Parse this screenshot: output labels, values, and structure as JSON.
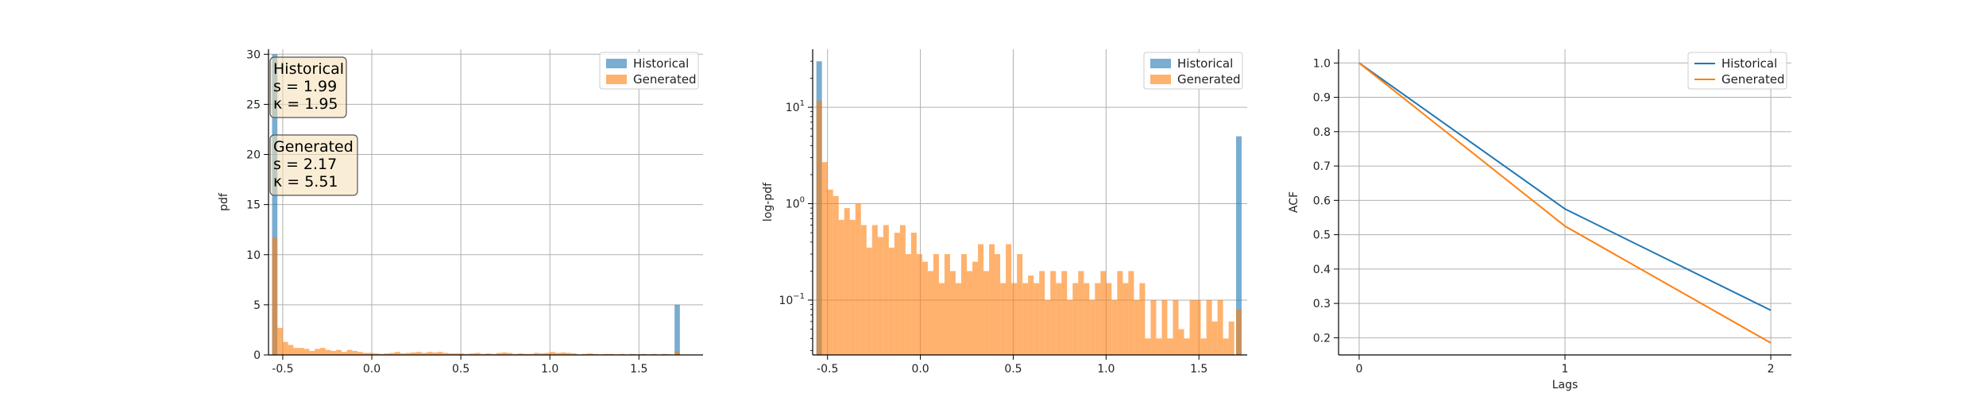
{
  "colors": {
    "historical": "#1f77b4",
    "generated": "#ff7f0e"
  },
  "chart_data": [
    {
      "type": "bar",
      "title": "",
      "xlabel": "",
      "ylabel": "pdf",
      "xlim": [
        -0.58,
        1.86
      ],
      "ylim": [
        0,
        30.5
      ],
      "x_ticks": [
        "-0.5",
        "0.0",
        "0.5",
        "1.0",
        "1.5"
      ],
      "x_tick_values": [
        -0.5,
        0.0,
        0.5,
        1.0,
        1.5
      ],
      "y_ticks": [
        "0",
        "5",
        "10",
        "15",
        "20",
        "25",
        "30"
      ],
      "y_tick_values": [
        0,
        5,
        10,
        15,
        20,
        25,
        30
      ],
      "grid": true,
      "legend": "top-right",
      "series": [
        {
          "name": "Historical",
          "color": "historical",
          "bins": [
            [
              -0.56,
              -0.53,
              30
            ],
            [
              1.7,
              1.73,
              5
            ]
          ]
        },
        {
          "name": "Generated",
          "color": "generated",
          "bins": [
            [
              -0.56,
              -0.53,
              11.7
            ],
            [
              -0.53,
              -0.5,
              2.7
            ],
            [
              -0.5,
              -0.47,
              1.3
            ],
            [
              -0.47,
              -0.44,
              1.0
            ],
            [
              -0.44,
              -0.41,
              0.7
            ],
            [
              -0.41,
              -0.38,
              0.7
            ],
            [
              -0.38,
              -0.35,
              0.6
            ],
            [
              -0.35,
              -0.32,
              0.4
            ],
            [
              -0.32,
              -0.29,
              0.6
            ],
            [
              -0.29,
              -0.26,
              0.7
            ],
            [
              -0.26,
              -0.23,
              0.5
            ],
            [
              -0.23,
              -0.2,
              0.4
            ],
            [
              -0.2,
              -0.17,
              0.5
            ],
            [
              -0.17,
              -0.14,
              0.3
            ],
            [
              -0.14,
              -0.11,
              0.5
            ],
            [
              -0.11,
              -0.08,
              0.4
            ],
            [
              -0.08,
              -0.05,
              0.3
            ],
            [
              -0.05,
              -0.02,
              0.2
            ],
            [
              -0.02,
              0.01,
              0.2
            ],
            [
              0.01,
              0.04,
              0.15
            ],
            [
              0.04,
              0.07,
              0.1
            ],
            [
              0.07,
              0.1,
              0.15
            ],
            [
              0.1,
              0.13,
              0.2
            ],
            [
              0.13,
              0.16,
              0.3
            ],
            [
              0.16,
              0.19,
              0.15
            ],
            [
              0.19,
              0.22,
              0.2
            ],
            [
              0.22,
              0.25,
              0.25
            ],
            [
              0.25,
              0.28,
              0.3
            ],
            [
              0.28,
              0.31,
              0.2
            ],
            [
              0.31,
              0.34,
              0.3
            ],
            [
              0.34,
              0.37,
              0.25
            ],
            [
              0.37,
              0.4,
              0.3
            ],
            [
              0.4,
              0.43,
              0.2
            ],
            [
              0.43,
              0.46,
              0.15
            ],
            [
              0.46,
              0.49,
              0.15
            ],
            [
              0.49,
              0.52,
              0.15
            ],
            [
              0.52,
              0.55,
              0.1
            ],
            [
              0.55,
              0.58,
              0.15
            ],
            [
              0.58,
              0.61,
              0.2
            ],
            [
              0.61,
              0.64,
              0.1
            ],
            [
              0.64,
              0.67,
              0.15
            ],
            [
              0.67,
              0.7,
              0.1
            ],
            [
              0.7,
              0.73,
              0.2
            ],
            [
              0.73,
              0.76,
              0.25
            ],
            [
              0.76,
              0.79,
              0.2
            ],
            [
              0.79,
              0.82,
              0.1
            ],
            [
              0.82,
              0.85,
              0.15
            ],
            [
              0.85,
              0.88,
              0.1
            ],
            [
              0.88,
              0.91,
              0.1
            ],
            [
              0.91,
              0.94,
              0.2
            ],
            [
              0.94,
              0.97,
              0.15
            ],
            [
              0.97,
              1.0,
              0.2
            ],
            [
              1.0,
              1.03,
              0.3
            ],
            [
              1.03,
              1.06,
              0.2
            ],
            [
              1.06,
              1.09,
              0.25
            ],
            [
              1.09,
              1.12,
              0.2
            ],
            [
              1.12,
              1.15,
              0.15
            ],
            [
              1.15,
              1.18,
              0.05
            ],
            [
              1.18,
              1.21,
              0.1
            ],
            [
              1.21,
              1.24,
              0.15
            ],
            [
              1.24,
              1.27,
              0.1
            ],
            [
              1.27,
              1.3,
              0.05
            ],
            [
              1.3,
              1.33,
              0.1
            ],
            [
              1.33,
              1.36,
              0.1
            ],
            [
              1.36,
              1.39,
              0.05
            ],
            [
              1.39,
              1.42,
              0.1
            ],
            [
              1.42,
              1.45,
              0.05
            ],
            [
              1.45,
              1.48,
              0.1
            ],
            [
              1.48,
              1.51,
              0.05
            ],
            [
              1.51,
              1.54,
              0.1
            ],
            [
              1.54,
              1.57,
              0.05
            ],
            [
              1.57,
              1.6,
              0.1
            ],
            [
              1.6,
              1.63,
              0.05
            ],
            [
              1.63,
              1.66,
              0.1
            ],
            [
              1.66,
              1.69,
              0.05
            ],
            [
              1.7,
              1.73,
              0.35
            ]
          ]
        }
      ],
      "annotations": [
        {
          "lines": [
            "Historical",
            "s = 1.99",
            "κ = 1.95"
          ]
        },
        {
          "lines": [
            "Generated",
            "s = 2.17",
            "κ = 5.51"
          ]
        }
      ]
    },
    {
      "type": "bar",
      "title": "",
      "xlabel": "",
      "ylabel": "log-pdf",
      "yscale": "log",
      "xlim": [
        -0.58,
        1.76
      ],
      "ylim": [
        0.027,
        40
      ],
      "x_ticks": [
        "-0.5",
        "0.0",
        "0.5",
        "1.0",
        "1.5"
      ],
      "x_tick_values": [
        -0.5,
        0.0,
        0.5,
        1.0,
        1.5
      ],
      "y_tick_values": [
        0.1,
        1,
        10
      ],
      "y_tick_labels": [
        [
          "10",
          "−1"
        ],
        [
          "10",
          "0"
        ],
        [
          "10",
          "1"
        ]
      ],
      "grid": true,
      "legend": "top-right",
      "series": [
        {
          "name": "Historical",
          "color": "historical",
          "bins": [
            [
              -0.56,
              -0.53,
              30
            ],
            [
              1.7,
              1.73,
              5
            ]
          ]
        },
        {
          "name": "Generated",
          "color": "generated",
          "bins": [
            [
              -0.56,
              -0.53,
              11.7
            ],
            [
              -0.53,
              -0.5,
              2.7
            ],
            [
              -0.5,
              -0.47,
              1.4
            ],
            [
              -0.47,
              -0.44,
              1.2
            ],
            [
              -0.44,
              -0.41,
              0.68
            ],
            [
              -0.41,
              -0.38,
              0.9
            ],
            [
              -0.38,
              -0.35,
              0.68
            ],
            [
              -0.35,
              -0.32,
              1.0
            ],
            [
              -0.32,
              -0.29,
              0.6
            ],
            [
              -0.29,
              -0.26,
              0.35
            ],
            [
              -0.26,
              -0.23,
              0.6
            ],
            [
              -0.23,
              -0.2,
              0.45
            ],
            [
              -0.2,
              -0.17,
              0.6
            ],
            [
              -0.17,
              -0.14,
              0.35
            ],
            [
              -0.14,
              -0.11,
              0.5
            ],
            [
              -0.11,
              -0.08,
              0.6
            ],
            [
              -0.08,
              -0.05,
              0.3
            ],
            [
              -0.05,
              -0.02,
              0.5
            ],
            [
              -0.02,
              0.01,
              0.3
            ],
            [
              0.01,
              0.04,
              0.25
            ],
            [
              0.04,
              0.07,
              0.2
            ],
            [
              0.07,
              0.1,
              0.3
            ],
            [
              0.1,
              0.13,
              0.15
            ],
            [
              0.13,
              0.16,
              0.3
            ],
            [
              0.16,
              0.19,
              0.2
            ],
            [
              0.19,
              0.22,
              0.15
            ],
            [
              0.22,
              0.25,
              0.3
            ],
            [
              0.25,
              0.28,
              0.2
            ],
            [
              0.28,
              0.31,
              0.25
            ],
            [
              0.31,
              0.34,
              0.38
            ],
            [
              0.34,
              0.37,
              0.2
            ],
            [
              0.37,
              0.4,
              0.38
            ],
            [
              0.4,
              0.43,
              0.3
            ],
            [
              0.43,
              0.46,
              0.15
            ],
            [
              0.46,
              0.49,
              0.38
            ],
            [
              0.49,
              0.52,
              0.15
            ],
            [
              0.52,
              0.55,
              0.3
            ],
            [
              0.55,
              0.58,
              0.15
            ],
            [
              0.58,
              0.61,
              0.18
            ],
            [
              0.61,
              0.64,
              0.15
            ],
            [
              0.64,
              0.67,
              0.2
            ],
            [
              0.67,
              0.7,
              0.1
            ],
            [
              0.7,
              0.73,
              0.2
            ],
            [
              0.73,
              0.76,
              0.15
            ],
            [
              0.76,
              0.79,
              0.2
            ],
            [
              0.79,
              0.82,
              0.1
            ],
            [
              0.82,
              0.85,
              0.15
            ],
            [
              0.85,
              0.88,
              0.2
            ],
            [
              0.88,
              0.91,
              0.15
            ],
            [
              0.91,
              0.94,
              0.1
            ],
            [
              0.94,
              0.97,
              0.15
            ],
            [
              0.97,
              1.0,
              0.2
            ],
            [
              1.0,
              1.03,
              0.15
            ],
            [
              1.03,
              1.06,
              0.1
            ],
            [
              1.06,
              1.09,
              0.2
            ],
            [
              1.09,
              1.12,
              0.15
            ],
            [
              1.12,
              1.15,
              0.2
            ],
            [
              1.15,
              1.18,
              0.1
            ],
            [
              1.18,
              1.21,
              0.15
            ],
            [
              1.21,
              1.24,
              0.04
            ],
            [
              1.24,
              1.27,
              0.1
            ],
            [
              1.27,
              1.3,
              0.04
            ],
            [
              1.3,
              1.33,
              0.1
            ],
            [
              1.33,
              1.36,
              0.04
            ],
            [
              1.36,
              1.39,
              0.1
            ],
            [
              1.39,
              1.42,
              0.05
            ],
            [
              1.42,
              1.45,
              0.04
            ],
            [
              1.45,
              1.48,
              0.1
            ],
            [
              1.48,
              1.51,
              0.1
            ],
            [
              1.51,
              1.54,
              0.04
            ],
            [
              1.54,
              1.57,
              0.1
            ],
            [
              1.57,
              1.6,
              0.06
            ],
            [
              1.6,
              1.63,
              0.1
            ],
            [
              1.63,
              1.66,
              0.04
            ],
            [
              1.66,
              1.69,
              0.06
            ],
            [
              1.7,
              1.73,
              0.08
            ]
          ]
        }
      ]
    },
    {
      "type": "line",
      "title": "",
      "xlabel": "Lags",
      "ylabel": "ACF",
      "xlim": [
        -0.1,
        2.1
      ],
      "ylim": [
        0.15,
        1.04
      ],
      "x_ticks": [
        "0",
        "1",
        "2"
      ],
      "x_tick_values": [
        0,
        1,
        2
      ],
      "y_ticks": [
        "0.2",
        "0.3",
        "0.4",
        "0.5",
        "0.6",
        "0.7",
        "0.8",
        "0.9",
        "1.0"
      ],
      "y_tick_values": [
        0.2,
        0.3,
        0.4,
        0.5,
        0.6,
        0.7,
        0.8,
        0.9,
        1.0
      ],
      "grid": true,
      "legend": "top-right",
      "x": [
        0,
        1,
        2
      ],
      "series": [
        {
          "name": "Historical",
          "color": "historical",
          "values": [
            1.0,
            0.575,
            0.28
          ]
        },
        {
          "name": "Generated",
          "color": "generated",
          "values": [
            1.0,
            0.525,
            0.185
          ]
        }
      ]
    }
  ]
}
